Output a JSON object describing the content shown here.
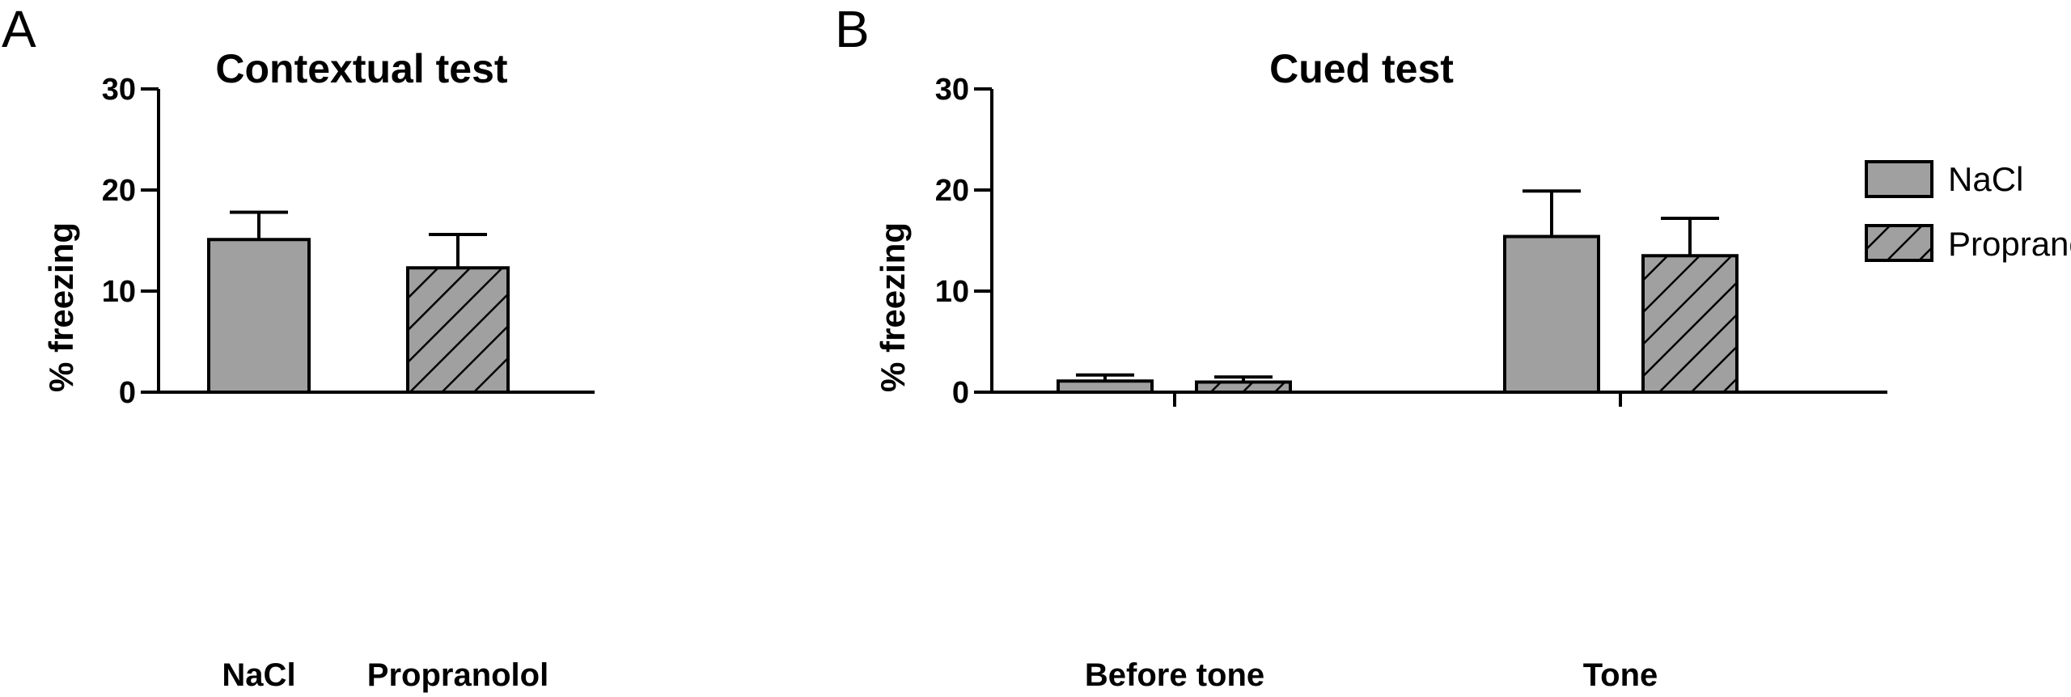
{
  "panels": {
    "a": {
      "letter": "A"
    },
    "b": {
      "letter": "B"
    }
  },
  "legend": {
    "items": [
      {
        "label": "NaCl",
        "pattern": "solid"
      },
      {
        "label": "Propranolol",
        "pattern": "hatched"
      }
    ]
  },
  "colors": {
    "bar_fill": "#a0a0a0",
    "stroke": "#000000",
    "background": "#ffffff"
  },
  "chart_data": [
    {
      "type": "bar",
      "title": "Contextual test",
      "ylabel": "% freezing",
      "xlabel": "",
      "ylim": [
        0,
        30
      ],
      "yticks": [
        "0",
        "10",
        "20",
        "30"
      ],
      "grid": false,
      "categories": [
        "NaCl",
        "Propranolol"
      ],
      "series": [
        {
          "values": [
            15.1,
            12.3
          ],
          "errors": [
            2.7,
            3.3
          ],
          "patterns": [
            "solid",
            "hatched"
          ]
        }
      ]
    },
    {
      "type": "bar",
      "title": "Cued test",
      "ylabel": "% freezing",
      "xlabel": "",
      "ylim": [
        0,
        30
      ],
      "yticks": [
        "0",
        "10",
        "20",
        "30"
      ],
      "grid": false,
      "legend": "top-right",
      "categories": [
        "Before tone",
        "Tone"
      ],
      "series": [
        {
          "name": "NaCl",
          "values": [
            1.1,
            15.4
          ],
          "errors": [
            0.6,
            4.5
          ]
        },
        {
          "name": "Propranolol",
          "values": [
            1.0,
            13.5
          ],
          "errors": [
            0.5,
            3.7
          ]
        }
      ]
    }
  ]
}
